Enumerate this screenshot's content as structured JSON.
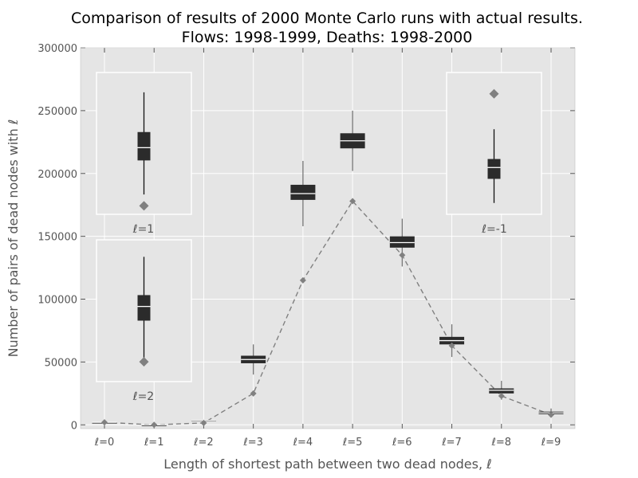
{
  "chart_data": {
    "type": "box",
    "title": [
      "Comparison of results of 2000 Monte Carlo runs with actual results.",
      "Flows: 1998-1999,  Deaths: 1998-2000"
    ],
    "xlabel": "Length of shortest path between two dead nodes, ℓ",
    "ylabel": "Number of pairs of dead nodes with ℓ",
    "ylim": [
      0,
      300000
    ],
    "yticks": [
      0,
      50000,
      100000,
      150000,
      200000,
      250000,
      300000
    ],
    "grid": true,
    "categories": [
      "ℓ=0",
      "ℓ=1",
      "ℓ=2",
      "ℓ=3",
      "ℓ=4",
      "ℓ=5",
      "ℓ=6",
      "ℓ=7",
      "ℓ=8",
      "ℓ=9"
    ],
    "monte_carlo_boxes": [
      {
        "x": 0,
        "whisker_low": 2000,
        "q1": 2000,
        "median": 2000,
        "q3": 2000,
        "whisker_high": 2000
      },
      {
        "x": 1,
        "whisker_low": 0,
        "q1": 0,
        "median": 0,
        "q3": 0,
        "whisker_high": 0
      },
      {
        "x": 2,
        "whisker_low": 3000,
        "q1": 3200,
        "median": 3500,
        "q3": 3800,
        "whisker_high": 4000
      },
      {
        "x": 3,
        "whisker_low": 40000,
        "q1": 49000,
        "median": 52000,
        "q3": 55000,
        "whisker_high": 64000
      },
      {
        "x": 4,
        "whisker_low": 158000,
        "q1": 179000,
        "median": 184000,
        "q3": 191000,
        "whisker_high": 210000
      },
      {
        "x": 5,
        "whisker_low": 202000,
        "q1": 220000,
        "median": 226000,
        "q3": 232000,
        "whisker_high": 250000
      },
      {
        "x": 6,
        "whisker_low": 126000,
        "q1": 141000,
        "median": 145000,
        "q3": 150000,
        "whisker_high": 164000
      },
      {
        "x": 7,
        "whisker_low": 54000,
        "q1": 64000,
        "median": 67000,
        "q3": 70000,
        "whisker_high": 80000
      },
      {
        "x": 8,
        "whisker_low": 20000,
        "q1": 25000,
        "median": 27500,
        "q3": 29000,
        "whisker_high": 35000
      },
      {
        "x": 9,
        "whisker_low": 7000,
        "q1": 8500,
        "median": 9500,
        "q3": 10500,
        "whisker_high": 13000
      }
    ],
    "actual_results": [
      2000,
      0,
      1500,
      25000,
      115000,
      178000,
      135000,
      63000,
      23000,
      8000
    ],
    "inset_labels": [
      "ℓ=1",
      "ℓ=-1",
      "ℓ=2"
    ],
    "insets": [
      {
        "label": "ℓ=1",
        "whisker_low": 0.14,
        "q1": 0.38,
        "median": 0.47,
        "q3": 0.58,
        "whisker_high": 0.86,
        "actual": 0.06
      },
      {
        "label": "ℓ=-1",
        "whisker_low": 0.08,
        "q1": 0.25,
        "median": 0.33,
        "q3": 0.39,
        "whisker_high": 0.6,
        "actual": 0.85
      },
      {
        "label": "ℓ=2",
        "whisker_low": 0.14,
        "q1": 0.43,
        "median": 0.53,
        "q3": 0.61,
        "whisker_high": 0.88,
        "actual": 0.14
      }
    ],
    "colors": {
      "background": "#e5e5e5",
      "grid": "#ffffff",
      "box": "#2b2b2b",
      "median": "#ffffff",
      "whisker": "#777777",
      "inset_whisker": "#111111",
      "actual": "#808080",
      "line": "#808080"
    }
  }
}
